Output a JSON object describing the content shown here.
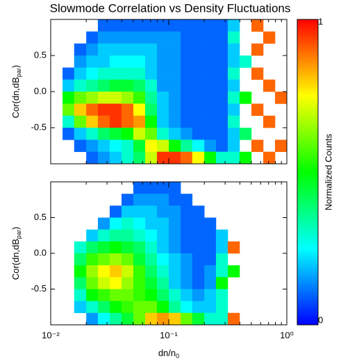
{
  "chart_data": {
    "type": "heatmap",
    "title": "Slowmode Correlation vs Density Fluctuations",
    "xlabel": {
      "text": "dn/n",
      "sub": "0"
    },
    "xscale": "log",
    "xlim": [
      0.01,
      1
    ],
    "xticks": [
      {
        "value": 0.01,
        "label": "10⁻²"
      },
      {
        "value": 0.1,
        "label": "10⁻¹"
      },
      {
        "value": 1,
        "label": "10⁰"
      }
    ],
    "x_bins": [
      0.01,
      0.0126,
      0.0158,
      0.02,
      0.0251,
      0.0316,
      0.0398,
      0.0501,
      0.0631,
      0.0794,
      0.1,
      0.126,
      0.158,
      0.2,
      0.251,
      0.316,
      0.398,
      0.501,
      0.631,
      0.794,
      1
    ],
    "y_bins": [
      1,
      0.833,
      0.667,
      0.5,
      0.333,
      0.167,
      0,
      -0.167,
      -0.333,
      -0.5,
      -0.667,
      -0.833,
      -1
    ],
    "colormap": [
      "#0000ff",
      "#00ffff",
      "#00ff00",
      "#ffff00",
      "#ff0000"
    ],
    "colorbar": {
      "label": "Normalized Counts",
      "clim": [
        0,
        1
      ],
      "ticks": [
        0,
        1
      ]
    },
    "panels": [
      {
        "ylabel": {
          "text": "Cor(dn,dB",
          "sub": "par",
          "close": ")"
        },
        "ylim": [
          -1,
          1
        ],
        "yticks": [
          -0.5,
          {
            "value": 0,
            "label": "0.0"
          },
          0.5
        ],
        "z": [
          [
            null,
            null,
            null,
            null,
            0.1,
            0.1,
            0.1,
            0.1,
            0.1,
            0.1,
            0.1,
            0.1,
            0.1,
            0.1,
            0.1,
            0.2,
            null,
            0.9,
            null,
            null
          ],
          [
            null,
            null,
            null,
            0.1,
            0.15,
            0.15,
            0.15,
            0.15,
            0.15,
            0.15,
            0.15,
            0.1,
            0.1,
            0.1,
            0.1,
            0.3,
            null,
            null,
            0.9,
            null
          ],
          [
            null,
            null,
            0.1,
            0.15,
            0.2,
            0.2,
            0.2,
            0.2,
            0.2,
            0.15,
            0.15,
            0.1,
            0.1,
            0.1,
            0.1,
            0.2,
            null,
            0.9,
            null,
            null
          ],
          [
            null,
            null,
            0.15,
            0.2,
            0.2,
            0.25,
            0.25,
            0.25,
            0.2,
            0.15,
            0.15,
            0.1,
            0.1,
            0.1,
            0.1,
            0.2,
            0.3,
            null,
            null,
            null
          ],
          [
            null,
            0.1,
            0.2,
            0.25,
            0.3,
            0.3,
            0.3,
            0.3,
            0.2,
            0.15,
            0.15,
            0.1,
            0.1,
            0.1,
            0.1,
            0.3,
            null,
            0.9,
            null,
            null
          ],
          [
            null,
            0.2,
            0.3,
            0.35,
            0.4,
            0.45,
            0.45,
            0.4,
            0.3,
            0.15,
            0.15,
            0.1,
            0.1,
            0.1,
            0.1,
            0.2,
            null,
            null,
            0.9,
            null
          ],
          [
            null,
            0.5,
            0.6,
            0.65,
            0.7,
            0.7,
            0.65,
            0.55,
            0.35,
            0.2,
            0.15,
            0.1,
            0.1,
            0.1,
            0.1,
            0.3,
            0.5,
            null,
            null,
            0.9
          ],
          [
            null,
            0.6,
            0.8,
            0.9,
            0.95,
            0.95,
            0.9,
            0.75,
            0.4,
            0.2,
            0.15,
            0.1,
            0.1,
            0.1,
            0.1,
            0.2,
            null,
            0.9,
            null,
            null
          ],
          [
            null,
            0.3,
            0.6,
            0.8,
            0.9,
            0.95,
            0.9,
            0.85,
            0.5,
            0.2,
            0.15,
            0.1,
            0.1,
            0.1,
            0.1,
            0.3,
            null,
            null,
            0.9,
            null
          ],
          [
            null,
            0.1,
            0.2,
            0.3,
            0.4,
            0.45,
            0.5,
            0.7,
            0.6,
            0.3,
            0.2,
            0.15,
            0.1,
            0.1,
            0.1,
            0.2,
            0.4,
            null,
            null,
            null
          ],
          [
            null,
            null,
            0.1,
            0.15,
            0.2,
            0.25,
            0.3,
            0.45,
            0.75,
            0.7,
            0.5,
            0.35,
            0.25,
            0.15,
            0.1,
            0.2,
            null,
            0.9,
            null,
            0.9
          ],
          [
            null,
            null,
            null,
            0.1,
            0.15,
            0.2,
            0.3,
            0.4,
            0.7,
            0.95,
            0.95,
            0.9,
            0.75,
            0.5,
            0.3,
            0.3,
            0.5,
            null,
            0.9,
            null
          ]
        ]
      },
      {
        "ylabel": {
          "text": "Cor(dn,dB",
          "sub": "par",
          "close": ")"
        },
        "ylim": [
          -1,
          1
        ],
        "yticks": [
          -0.5,
          {
            "value": 0,
            "label": "0.0"
          },
          0.5
        ],
        "z": [
          [
            null,
            null,
            null,
            null,
            null,
            null,
            null,
            0.1,
            0.1,
            0.1,
            0.1,
            null,
            null,
            null,
            null,
            null,
            null,
            null,
            null,
            null
          ],
          [
            null,
            null,
            null,
            null,
            null,
            null,
            0.1,
            0.15,
            0.15,
            0.15,
            0.1,
            0.1,
            null,
            null,
            null,
            null,
            null,
            null,
            null,
            null
          ],
          [
            null,
            null,
            null,
            null,
            null,
            0.1,
            0.2,
            0.2,
            0.2,
            0.15,
            0.15,
            0.1,
            0.1,
            null,
            null,
            null,
            null,
            null,
            null,
            null
          ],
          [
            null,
            null,
            null,
            null,
            0.15,
            0.25,
            0.3,
            0.25,
            0.2,
            0.2,
            0.15,
            0.1,
            0.1,
            0.1,
            null,
            null,
            null,
            null,
            null,
            null
          ],
          [
            null,
            null,
            null,
            0.2,
            0.3,
            0.35,
            0.35,
            0.3,
            0.25,
            0.2,
            0.15,
            0.1,
            0.1,
            0.1,
            0.2,
            null,
            null,
            null,
            null,
            null
          ],
          [
            null,
            null,
            0.3,
            0.4,
            0.45,
            0.5,
            0.45,
            0.4,
            0.3,
            0.2,
            0.15,
            0.1,
            0.1,
            0.1,
            0.2,
            0.9,
            null,
            null,
            null,
            null
          ],
          [
            null,
            null,
            0.4,
            0.55,
            0.6,
            0.65,
            0.6,
            0.45,
            0.35,
            0.25,
            0.2,
            0.15,
            0.1,
            0.1,
            0.3,
            null,
            null,
            null,
            null,
            null
          ],
          [
            null,
            null,
            0.5,
            0.65,
            0.75,
            0.8,
            0.7,
            0.55,
            0.4,
            0.3,
            0.2,
            0.15,
            0.1,
            0.15,
            0.3,
            0.5,
            null,
            null,
            null,
            null
          ],
          [
            null,
            null,
            0.4,
            0.6,
            0.7,
            0.75,
            0.65,
            0.55,
            0.45,
            0.35,
            0.2,
            0.15,
            0.1,
            0.15,
            0.5,
            null,
            null,
            null,
            null,
            null
          ],
          [
            null,
            null,
            0.3,
            0.5,
            0.55,
            0.6,
            0.6,
            0.55,
            0.5,
            0.4,
            0.3,
            0.2,
            0.15,
            0.2,
            0.3,
            null,
            null,
            null,
            null,
            null
          ],
          [
            null,
            null,
            0.2,
            0.3,
            0.4,
            0.5,
            0.55,
            0.6,
            0.6,
            0.5,
            0.35,
            0.25,
            0.2,
            0.2,
            0.3,
            null,
            null,
            null,
            null,
            null
          ],
          [
            null,
            null,
            null,
            0.15,
            0.25,
            0.35,
            0.45,
            0.6,
            0.8,
            0.85,
            0.8,
            0.6,
            0.45,
            0.3,
            0.3,
            0.9,
            null,
            null,
            null,
            null
          ]
        ]
      }
    ]
  }
}
